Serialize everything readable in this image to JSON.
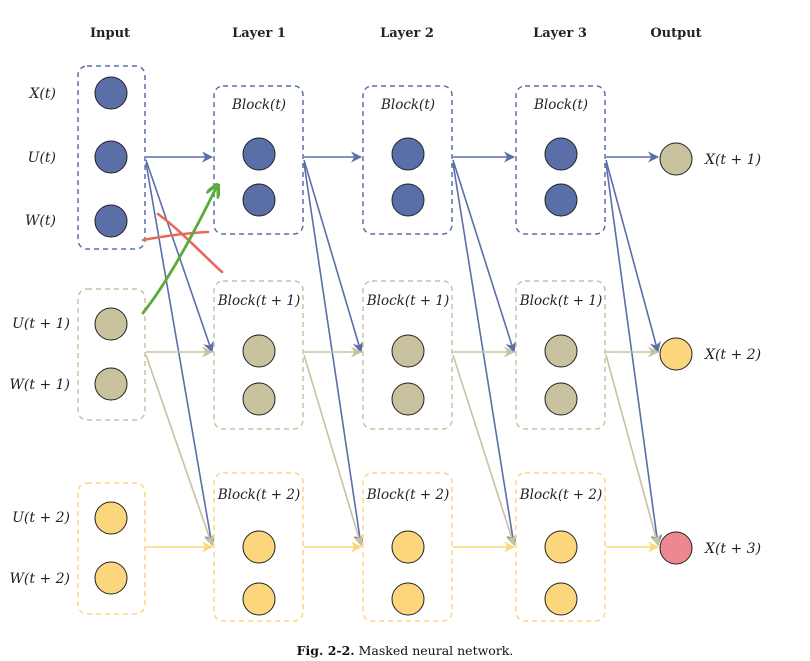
{
  "headers": {
    "input": "Input",
    "layer1": "Layer 1",
    "layer2": "Layer 2",
    "layer3": "Layer 3",
    "output": "Output"
  },
  "input_labels": [
    "X(t)",
    "U(t)",
    "W(t)",
    "U(t + 1)",
    "W(t + 1)",
    "U(t + 2)",
    "W(t + 2)"
  ],
  "block_labels": [
    "Block(t)",
    "Block(t + 1)",
    "Block(t + 2)"
  ],
  "output_labels": [
    "X(t + 1)",
    "X(t + 2)",
    "X(t + 3)"
  ],
  "caption": {
    "prefix": "Fig. 2-2.",
    "text": "Masked neural network."
  },
  "colors": {
    "blue": "#5a6fa8",
    "khaki": "#c8c29f",
    "yellow": "#fbd67c",
    "red": "#ee8890",
    "annotation_green": "#5aab3a",
    "annotation_red": "#e8685c"
  },
  "icons": {
    "annotation_check": "green-arrow-icon",
    "annotation_cross": "red-cross-icon"
  }
}
